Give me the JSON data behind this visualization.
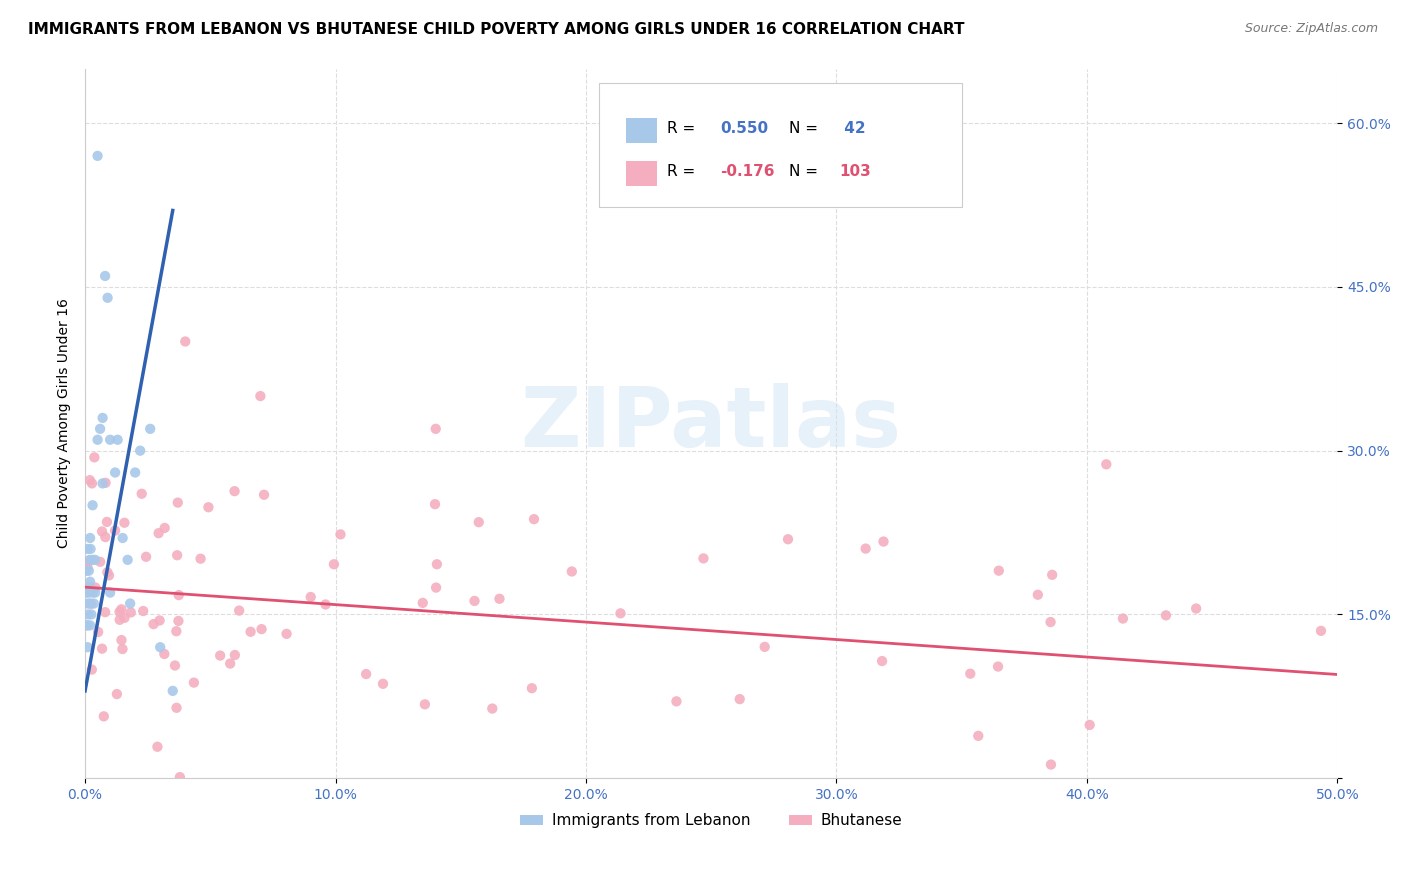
{
  "title": "IMMIGRANTS FROM LEBANON VS BHUTANESE CHILD POVERTY AMONG GIRLS UNDER 16 CORRELATION CHART",
  "source": "Source: ZipAtlas.com",
  "ylabel": "Child Poverty Among Girls Under 16",
  "xlim": [
    0.0,
    0.5
  ],
  "ylim": [
    0.0,
    0.65
  ],
  "xticks": [
    0.0,
    0.1,
    0.2,
    0.3,
    0.4,
    0.5
  ],
  "xticklabels": [
    "0.0%",
    "10.0%",
    "20.0%",
    "30.0%",
    "40.0%",
    "50.0%"
  ],
  "yticks": [
    0.0,
    0.15,
    0.3,
    0.45,
    0.6
  ],
  "yticklabels": [
    "",
    "15.0%",
    "30.0%",
    "45.0%",
    "60.0%"
  ],
  "color_lebanon": "#a8c8ea",
  "color_bhutanese": "#f4aec0",
  "color_line_lebanon": "#3060b0",
  "color_line_bhutanese": "#e05070",
  "color_tick": "#4472c4",
  "watermark_text": "ZIPatlas",
  "watermark_color": "#d0e4f5",
  "legend_r1_label": "R = ",
  "legend_r1_val": "0.550",
  "legend_n1_label": "N = ",
  "legend_n1_val": " 42",
  "legend_r2_label": "R = ",
  "legend_r2_val": "-0.176",
  "legend_n2_label": "N = ",
  "legend_n2_val": "103",
  "bottom_legend_label1": "Immigrants from Lebanon",
  "bottom_legend_label2": "Bhutanese",
  "title_fontsize": 11,
  "source_fontsize": 9,
  "ylabel_fontsize": 10,
  "tick_fontsize": 10,
  "legend_fontsize": 11
}
